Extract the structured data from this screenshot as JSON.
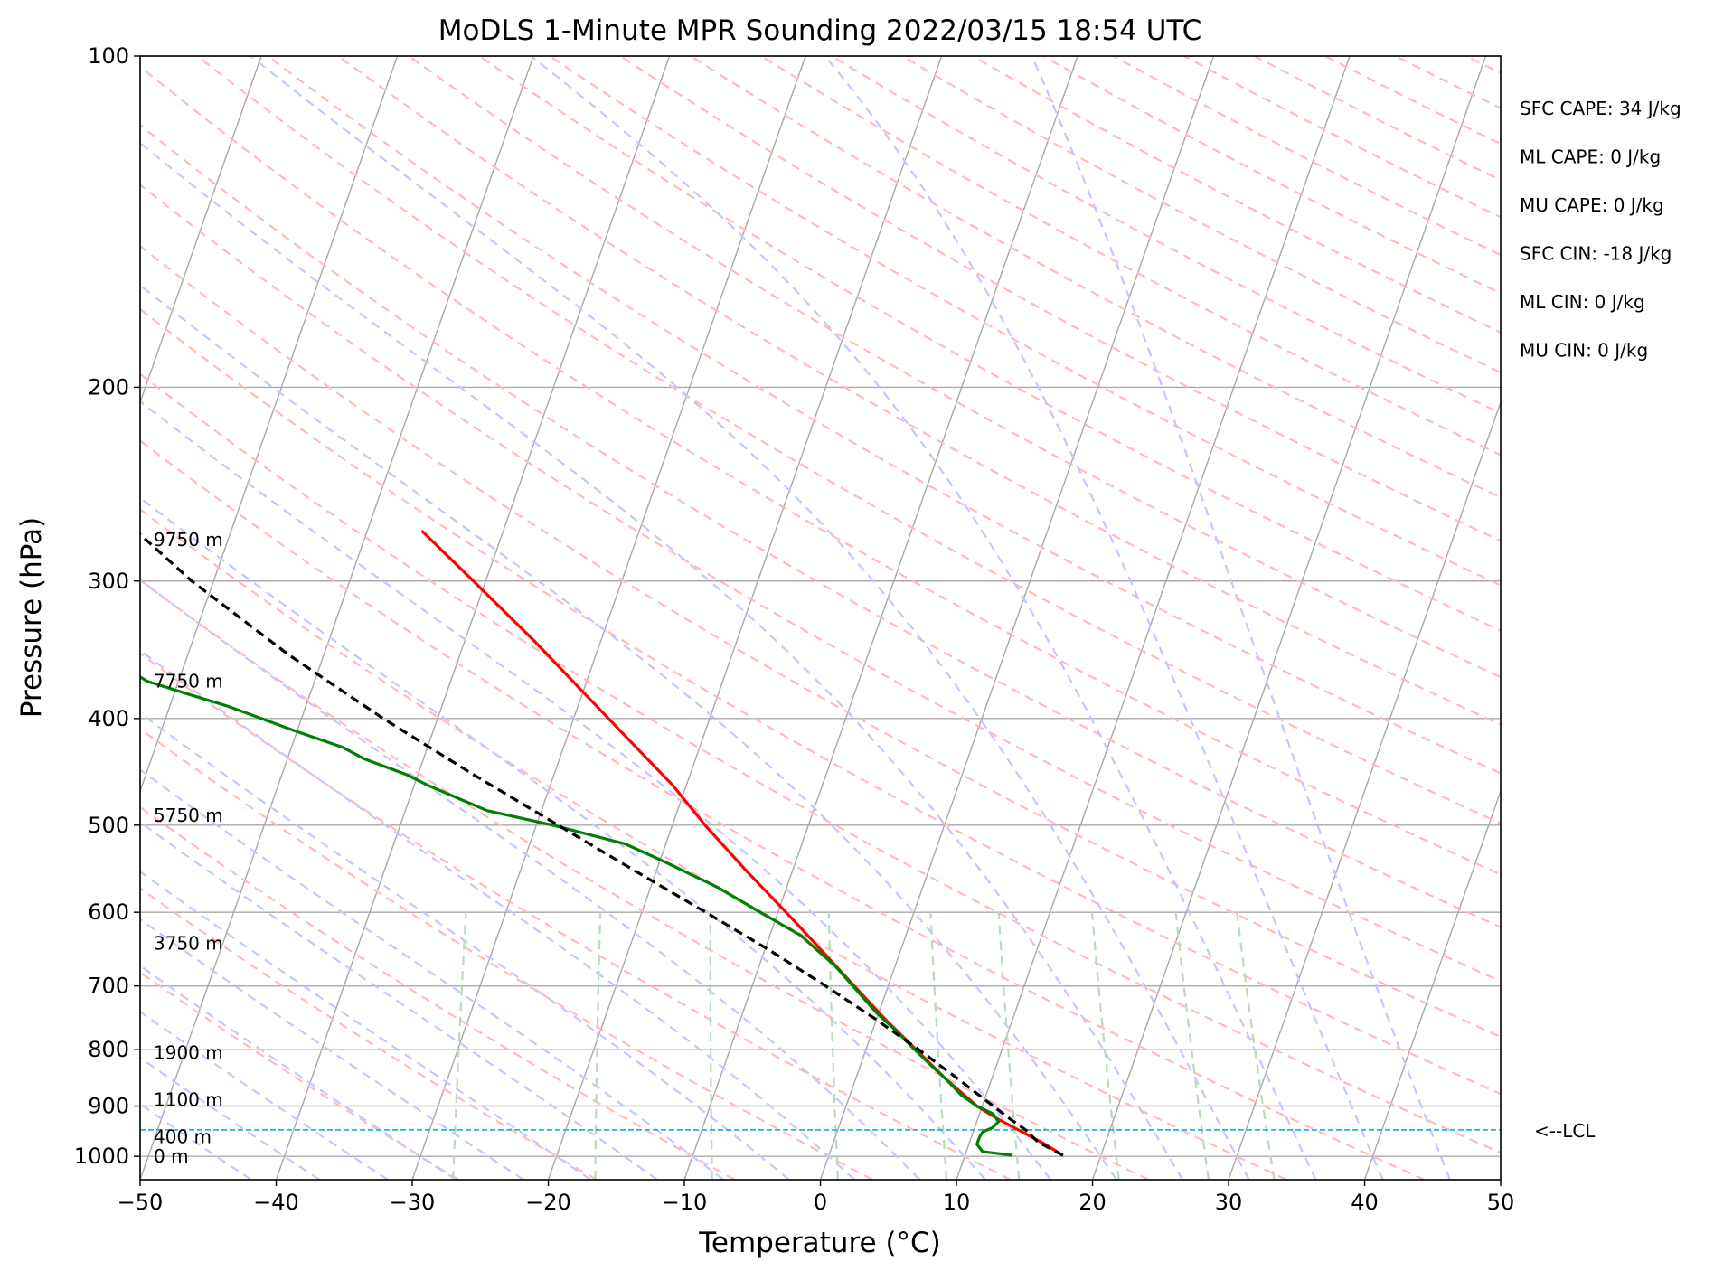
{
  "chart_data": {
    "type": "line",
    "chart_kind": "skew-t log-p",
    "title": "MoDLS 1-Minute MPR Sounding 2022/03/15 18:54 UTC",
    "xlabel": "Temperature (°C)",
    "ylabel": "Pressure (hPa)",
    "xlim": [
      -50,
      50
    ],
    "ylim": [
      1050,
      100
    ],
    "y_scale": "log",
    "grid": true,
    "x_ticks": [
      -50,
      -40,
      -30,
      -20,
      -10,
      0,
      10,
      20,
      30,
      40,
      50
    ],
    "x_tick_labels": [
      "−50",
      "−40",
      "−30",
      "−20",
      "−10",
      "0",
      "10",
      "20",
      "30",
      "40",
      "50"
    ],
    "y_ticks": [
      100,
      200,
      300,
      400,
      500,
      600,
      700,
      800,
      900,
      1000
    ],
    "y_tick_labels": [
      "100",
      "200",
      "300",
      "400",
      "500",
      "600",
      "700",
      "800",
      "900",
      "1000"
    ],
    "height_labels": [
      {
        "text": "9750 m",
        "p": 275
      },
      {
        "text": "7750 m",
        "p": 370
      },
      {
        "text": "5750 m",
        "p": 490
      },
      {
        "text": "3750 m",
        "p": 640
      },
      {
        "text": "1900 m",
        "p": 805
      },
      {
        "text": "1100 m",
        "p": 888
      },
      {
        "text": "400 m",
        "p": 960
      },
      {
        "text": "0 m",
        "p": 1000
      }
    ],
    "lcl": {
      "p": 946,
      "label": "<--LCL",
      "color": "#17becf"
    },
    "stats": [
      "SFC CAPE: 34 J/kg",
      "ML CAPE: 0 J/kg",
      "MU CAPE: 0 J/kg",
      "SFC CIN: -18 J/kg",
      "ML CIN: 0 J/kg",
      "MU CIN: 0 J/kg"
    ],
    "series": [
      {
        "role": "temperature",
        "color": "#ff0000",
        "points": [
          [
            998,
            17.2
          ],
          [
            975,
            15.6
          ],
          [
            950,
            13.6
          ],
          [
            925,
            11.5
          ],
          [
            900,
            9.6
          ],
          [
            850,
            6.6
          ],
          [
            800,
            3.7
          ],
          [
            750,
            0.6
          ],
          [
            700,
            -2.5
          ],
          [
            650,
            -5.8
          ],
          [
            600,
            -9.4
          ],
          [
            550,
            -13.4
          ],
          [
            500,
            -17.6
          ],
          [
            460,
            -21.0
          ],
          [
            420,
            -25.2
          ],
          [
            380,
            -29.8
          ],
          [
            340,
            -34.9
          ],
          [
            300,
            -40.9
          ],
          [
            270,
            -46.0
          ]
        ]
      },
      {
        "role": "dewpoint",
        "color": "#008000",
        "points": [
          [
            998,
            13.5
          ],
          [
            990,
            11.2
          ],
          [
            975,
            10.6
          ],
          [
            960,
            10.6
          ],
          [
            950,
            10.7
          ],
          [
            942,
            11.3
          ],
          [
            930,
            11.6
          ],
          [
            915,
            11.0
          ],
          [
            900,
            9.6
          ],
          [
            880,
            8.2
          ],
          [
            850,
            6.6
          ],
          [
            820,
            4.8
          ],
          [
            800,
            3.6
          ],
          [
            770,
            1.8
          ],
          [
            740,
            -0.2
          ],
          [
            700,
            -2.6
          ],
          [
            670,
            -4.5
          ],
          [
            650,
            -6.1
          ],
          [
            630,
            -7.7
          ],
          [
            600,
            -11.3
          ],
          [
            570,
            -15.0
          ],
          [
            540,
            -19.6
          ],
          [
            520,
            -23.0
          ],
          [
            500,
            -28.8
          ],
          [
            485,
            -34.0
          ],
          [
            460,
            -39.0
          ],
          [
            450,
            -40.8
          ],
          [
            435,
            -44.4
          ],
          [
            425,
            -46.2
          ],
          [
            410,
            -50.3
          ],
          [
            390,
            -55.7
          ],
          [
            380,
            -59.0
          ],
          [
            370,
            -62.3
          ],
          [
            355,
            -65.2
          ],
          [
            345,
            -67.7
          ],
          [
            338,
            -79.0
          ],
          [
            333,
            -79.6
          ]
        ]
      },
      {
        "role": "parcel",
        "color": "#000000",
        "points": [
          [
            998,
            17.2
          ],
          [
            970,
            15.0
          ],
          [
            946,
            13.8
          ],
          [
            925,
            12.4
          ],
          [
            900,
            10.8
          ],
          [
            850,
            7.5
          ],
          [
            800,
            3.9
          ],
          [
            750,
            -0.1
          ],
          [
            700,
            -4.6
          ],
          [
            650,
            -9.6
          ],
          [
            600,
            -15.3
          ],
          [
            550,
            -21.6
          ],
          [
            500,
            -28.4
          ],
          [
            450,
            -35.9
          ],
          [
            400,
            -44.0
          ],
          [
            350,
            -52.6
          ],
          [
            300,
            -61.6
          ],
          [
            270,
            -67.0
          ]
        ]
      }
    ]
  }
}
